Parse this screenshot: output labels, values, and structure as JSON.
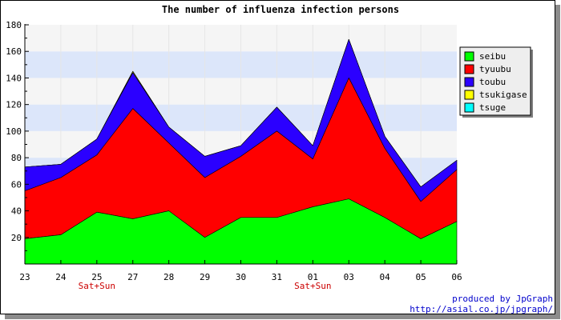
{
  "chart_data": {
    "type": "area",
    "stacked": true,
    "title": "The number of influenza infection persons",
    "xlabel": "",
    "ylabel": "",
    "categories": [
      "23",
      "24",
      "25",
      "27",
      "28",
      "29",
      "30",
      "31",
      "01",
      "03",
      "04",
      "05",
      "06"
    ],
    "x_notes": [
      {
        "category": "25",
        "text": "Sat+Sun"
      },
      {
        "category": "01",
        "text": "Sat+Sun"
      }
    ],
    "ylim": [
      0,
      180
    ],
    "yticks": [
      20,
      40,
      60,
      80,
      100,
      120,
      140,
      160,
      180
    ],
    "grid": true,
    "legend_position": "right",
    "series": [
      {
        "name": "seibu",
        "color": "#00ff00",
        "values": [
          19,
          22,
          39,
          34,
          40,
          20,
          35,
          35,
          43,
          49,
          35,
          19,
          32
        ]
      },
      {
        "name": "tyuubu",
        "color": "#ff0000",
        "values": [
          36,
          43,
          43,
          83,
          51,
          45,
          46,
          65,
          36,
          91,
          52,
          28,
          39
        ]
      },
      {
        "name": "toubu",
        "color": "#2b00ff",
        "values": [
          18,
          10,
          12,
          27,
          12,
          16,
          8,
          18,
          10,
          29,
          9,
          11,
          7
        ]
      },
      {
        "name": "tsukigase",
        "color": "#ffff00",
        "values": [
          0,
          0,
          0,
          1,
          0,
          0,
          0,
          0,
          0,
          0,
          0,
          0,
          0
        ]
      },
      {
        "name": "tsuge",
        "color": "#00ffff",
        "values": [
          0,
          0,
          0,
          0,
          0,
          0,
          0,
          0,
          0,
          0,
          0,
          0,
          0
        ]
      }
    ]
  },
  "credits": {
    "line1": "produced by JpGraph",
    "line2": "http://asial.co.jp/jpgraph/"
  },
  "colors": {
    "band_light": "#f5f5f5",
    "band_blue": "#dce6fa",
    "note": "#cc0000",
    "credit": "#0000cc"
  }
}
